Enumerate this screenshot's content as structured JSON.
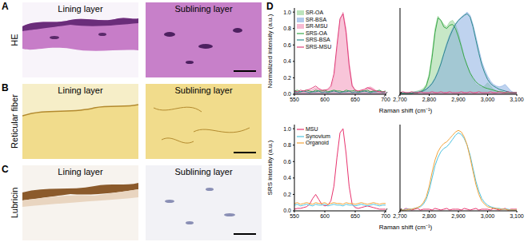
{
  "image_panels": [
    {
      "label": "A",
      "title": "HE",
      "columns": [
        "Lining layer",
        "Sublining layer"
      ]
    },
    {
      "label": "B",
      "title": "Reticular fiber",
      "columns": [
        "Lining layer",
        "Sublining layer"
      ]
    },
    {
      "label": "C",
      "title": "Lubricin",
      "columns": [
        "Lining layer",
        "Sublining layer"
      ]
    }
  ],
  "chart_panel_label": "D",
  "chart_data": [
    {
      "type": "line",
      "xlabel": "Raman shift (cm⁻¹)",
      "ylabel": "Normalized intensity (a.u.)",
      "legend": "upper left",
      "segments": [
        {
          "xlim": [
            550,
            700
          ],
          "xticks": [
            550,
            600,
            650,
            700
          ]
        },
        {
          "xlim": [
            2700,
            3100
          ],
          "xticks": [
            {
              "value": 2700,
              "label": "2,700"
            },
            {
              "value": 2800,
              "label": "2,800"
            },
            {
              "value": 2900,
              "label": "2,900"
            },
            {
              "value": 3000,
              "label": "3,000"
            },
            {
              "value": 3100,
              "label": "3,100"
            }
          ]
        }
      ],
      "ylim": [
        0,
        1.05
      ],
      "yticks": [
        {
          "value": 0,
          "label": "0.0"
        },
        {
          "value": 0.2,
          "label": "0.2"
        },
        {
          "value": 0.4,
          "label": "0.4"
        },
        {
          "value": 0.6,
          "label": "0.6"
        },
        {
          "value": 0.8,
          "label": "0.8"
        },
        {
          "value": 1,
          "label": "1.0"
        }
      ],
      "x": [
        550,
        555,
        560,
        565,
        570,
        575,
        580,
        585,
        590,
        595,
        600,
        605,
        610,
        615,
        620,
        625,
        630,
        635,
        640,
        645,
        650,
        655,
        660,
        665,
        670,
        675,
        680,
        685,
        690,
        695,
        700,
        2700,
        2710,
        2720,
        2730,
        2740,
        2750,
        2760,
        2770,
        2780,
        2790,
        2800,
        2810,
        2820,
        2830,
        2840,
        2850,
        2860,
        2870,
        2880,
        2890,
        2900,
        2910,
        2920,
        2930,
        2940,
        2950,
        2960,
        2970,
        2980,
        2990,
        3000,
        3010,
        3020,
        3030,
        3040,
        3050,
        3060,
        3070,
        3080,
        3090,
        3100
      ],
      "series": [
        {
          "name": "SR-OA",
          "type": "area",
          "color": "#8fd18f",
          "values": [
            0.03,
            0.03,
            0.02,
            0.03,
            0.03,
            0.02,
            0.03,
            0.03,
            0.02,
            0.03,
            0.03,
            0.02,
            0.03,
            0.03,
            0.03,
            0.02,
            0.03,
            0.03,
            0.02,
            0.03,
            0.03,
            0.02,
            0.03,
            0.03,
            0.02,
            0.03,
            0.03,
            0.02,
            0.03,
            0.03,
            0.02,
            0.02,
            0.02,
            0.02,
            0.02,
            0.03,
            0.03,
            0.04,
            0.05,
            0.07,
            0.12,
            0.25,
            0.5,
            0.8,
            0.95,
            0.9,
            0.85,
            0.82,
            0.88,
            0.9,
            0.85,
            0.75,
            0.6,
            0.45,
            0.35,
            0.25,
            0.18,
            0.12,
            0.1,
            0.08,
            0.1,
            0.14,
            0.1,
            0.06,
            0.04,
            0.03,
            0.02,
            0.02,
            0.02,
            0.02,
            0.02,
            0.02
          ]
        },
        {
          "name": "SR-BSA",
          "type": "area",
          "color": "#7fa8e0",
          "values": [
            0.02,
            0.02,
            0.03,
            0.02,
            0.02,
            0.02,
            0.03,
            0.02,
            0.02,
            0.02,
            0.02,
            0.02,
            0.03,
            0.02,
            0.02,
            0.02,
            0.03,
            0.02,
            0.02,
            0.02,
            0.02,
            0.02,
            0.03,
            0.02,
            0.02,
            0.02,
            0.03,
            0.02,
            0.02,
            0.02,
            0.02,
            0.02,
            0.02,
            0.02,
            0.02,
            0.02,
            0.03,
            0.03,
            0.04,
            0.05,
            0.07,
            0.1,
            0.14,
            0.2,
            0.28,
            0.38,
            0.5,
            0.62,
            0.72,
            0.8,
            0.86,
            0.9,
            0.94,
            0.97,
            1.0,
            0.96,
            0.85,
            0.7,
            0.55,
            0.4,
            0.3,
            0.22,
            0.16,
            0.12,
            0.1,
            0.09,
            0.1,
            0.12,
            0.08,
            0.04,
            0.02,
            0.02
          ]
        },
        {
          "name": "SR-MSU",
          "type": "area",
          "color": "#f28cb4",
          "values": [
            0.02,
            0.02,
            0.02,
            0.03,
            0.03,
            0.04,
            0.06,
            0.08,
            0.06,
            0.04,
            0.04,
            0.05,
            0.08,
            0.2,
            0.55,
            0.9,
            1.0,
            0.8,
            0.4,
            0.12,
            0.05,
            0.04,
            0.04,
            0.05,
            0.08,
            0.09,
            0.07,
            0.04,
            0.03,
            0.02,
            0.02,
            0.01,
            0.01,
            0.02,
            0.01,
            0.01,
            0.01,
            0.02,
            0.01,
            0.01,
            0.01,
            0.01,
            0.01,
            0.02,
            0.01,
            0.01,
            0.01,
            0.02,
            0.01,
            0.01,
            0.01,
            0.01,
            0.01,
            0.02,
            0.01,
            0.01,
            0.01,
            0.02,
            0.01,
            0.01,
            0.01,
            0.01,
            0.01,
            0.02,
            0.01,
            0.01,
            0.01,
            0.02,
            0.01,
            0.01,
            0.01,
            0.01
          ]
        },
        {
          "name": "SRS-OA",
          "type": "line",
          "color": "#3aa84a",
          "values": [
            0.04,
            0.05,
            0.03,
            0.04,
            0.05,
            0.04,
            0.03,
            0.05,
            0.04,
            0.04,
            0.05,
            0.03,
            0.04,
            0.05,
            0.04,
            0.04,
            0.03,
            0.05,
            0.04,
            0.04,
            0.05,
            0.03,
            0.04,
            0.04,
            0.05,
            0.03,
            0.04,
            0.04,
            0.05,
            0.03,
            0.04,
            0.01,
            0.01,
            0.01,
            0.01,
            0.01,
            0.02,
            0.02,
            0.03,
            0.05,
            0.1,
            0.22,
            0.45,
            0.75,
            0.93,
            0.9,
            0.82,
            0.8,
            0.84,
            0.85,
            0.8,
            0.7,
            0.58,
            0.45,
            0.35,
            0.26,
            0.2,
            0.15,
            0.12,
            0.1,
            0.08,
            0.07,
            0.06,
            0.05,
            0.04,
            0.03,
            0.03,
            0.02,
            0.02,
            0.02,
            0.02,
            0.02
          ]
        },
        {
          "name": "SRS-BSA",
          "type": "line",
          "color": "#2e8b8b",
          "values": [
            0.03,
            0.02,
            0.03,
            0.04,
            0.03,
            0.02,
            0.03,
            0.03,
            0.04,
            0.02,
            0.03,
            0.02,
            0.03,
            0.04,
            0.03,
            0.02,
            0.03,
            0.03,
            0.04,
            0.02,
            0.03,
            0.02,
            0.03,
            0.04,
            0.03,
            0.02,
            0.03,
            0.03,
            0.04,
            0.02,
            0.03,
            0.01,
            0.01,
            0.01,
            0.01,
            0.01,
            0.02,
            0.02,
            0.03,
            0.04,
            0.06,
            0.09,
            0.13,
            0.19,
            0.27,
            0.37,
            0.49,
            0.6,
            0.7,
            0.78,
            0.85,
            0.9,
            0.93,
            0.96,
            0.98,
            0.94,
            0.82,
            0.66,
            0.5,
            0.36,
            0.26,
            0.18,
            0.13,
            0.1,
            0.08,
            0.06,
            0.05,
            0.04,
            0.03,
            0.02,
            0.02,
            0.02
          ]
        },
        {
          "name": "SRS-MSU",
          "type": "line",
          "color": "#e0407a",
          "values": [
            0.04,
            0.03,
            0.05,
            0.04,
            0.05,
            0.06,
            0.08,
            0.1,
            0.07,
            0.05,
            0.05,
            0.06,
            0.1,
            0.25,
            0.6,
            0.92,
            0.98,
            0.75,
            0.35,
            0.1,
            0.05,
            0.04,
            0.05,
            0.06,
            0.08,
            0.07,
            0.05,
            0.04,
            0.03,
            0.03,
            0.03,
            0.02,
            0.03,
            0.02,
            0.02,
            0.03,
            0.02,
            0.02,
            0.03,
            0.02,
            0.02,
            0.02,
            0.03,
            0.02,
            0.02,
            0.03,
            0.02,
            0.02,
            0.03,
            0.02,
            0.02,
            0.02,
            0.03,
            0.02,
            0.02,
            0.03,
            0.02,
            0.02,
            0.03,
            0.02,
            0.02,
            0.02,
            0.03,
            0.02,
            0.02,
            0.03,
            0.02,
            0.02,
            0.03,
            0.02,
            0.02,
            0.02
          ]
        }
      ]
    },
    {
      "type": "line",
      "xlabel": "Raman shift (cm⁻¹)",
      "ylabel": "SRS intensity (a.u.)",
      "legend": "upper left",
      "segments": [
        {
          "xlim": [
            550,
            700
          ],
          "xticks": [
            550,
            600,
            650,
            700
          ]
        },
        {
          "xlim": [
            2700,
            3100
          ],
          "xticks": [
            {
              "value": 2700,
              "label": "2,700"
            },
            {
              "value": 2800,
              "label": "2,800"
            },
            {
              "value": 2900,
              "label": "2,900"
            },
            {
              "value": 3000,
              "label": "3,000"
            },
            {
              "value": 3100,
              "label": "3,100"
            }
          ]
        }
      ],
      "ylim": [
        0,
        1.05
      ],
      "yticks": [
        {
          "value": 0,
          "label": "0.0"
        },
        {
          "value": 0.2,
          "label": "0.2"
        },
        {
          "value": 0.4,
          "label": "0.4"
        },
        {
          "value": 0.6,
          "label": "0.6"
        },
        {
          "value": 0.8,
          "label": "0.8"
        },
        {
          "value": 1,
          "label": "1.0"
        }
      ],
      "x": [
        550,
        555,
        560,
        565,
        570,
        575,
        580,
        585,
        590,
        595,
        600,
        605,
        610,
        615,
        620,
        625,
        630,
        635,
        640,
        645,
        650,
        655,
        660,
        665,
        670,
        675,
        680,
        685,
        690,
        695,
        700,
        2700,
        2710,
        2720,
        2730,
        2740,
        2750,
        2760,
        2770,
        2780,
        2790,
        2800,
        2810,
        2820,
        2830,
        2840,
        2850,
        2860,
        2870,
        2880,
        2890,
        2900,
        2910,
        2920,
        2930,
        2940,
        2950,
        2960,
        2970,
        2980,
        2990,
        3000,
        3010,
        3020,
        3030,
        3040,
        3050,
        3060,
        3070,
        3080,
        3090,
        3100
      ],
      "series": [
        {
          "name": "MSU",
          "type": "line",
          "color": "#e8336e",
          "values": [
            0.02,
            0.03,
            0.03,
            0.04,
            0.05,
            0.08,
            0.15,
            0.2,
            0.14,
            0.08,
            0.06,
            0.07,
            0.12,
            0.3,
            0.65,
            0.95,
            1.0,
            0.7,
            0.3,
            0.08,
            0.04,
            0.03,
            0.04,
            0.05,
            0.06,
            0.05,
            0.04,
            0.03,
            0.02,
            0.02,
            0.02,
            0.02,
            0.01,
            0.03,
            0.02,
            0.01,
            0.02,
            0.03,
            0.01,
            0.02,
            0.02,
            0.02,
            0.01,
            0.03,
            0.02,
            0.01,
            0.02,
            0.03,
            0.01,
            0.02,
            0.02,
            0.02,
            0.01,
            0.03,
            0.02,
            0.01,
            0.02,
            0.03,
            0.01,
            0.02,
            0.02,
            0.02,
            0.01,
            0.03,
            0.02,
            0.01,
            0.02,
            0.03,
            0.01,
            0.02,
            0.02,
            0.02
          ]
        },
        {
          "name": "Synovium",
          "type": "line",
          "color": "#4fc3e0",
          "values": [
            0.07,
            0.08,
            0.06,
            0.07,
            0.08,
            0.07,
            0.06,
            0.08,
            0.07,
            0.07,
            0.08,
            0.06,
            0.07,
            0.08,
            0.07,
            0.07,
            0.06,
            0.08,
            0.07,
            0.07,
            0.06,
            0.07,
            0.08,
            0.07,
            0.06,
            0.07,
            0.08,
            0.07,
            0.06,
            0.07,
            0.07,
            0.01,
            0.01,
            0.02,
            0.02,
            0.02,
            0.03,
            0.04,
            0.05,
            0.08,
            0.14,
            0.25,
            0.4,
            0.55,
            0.65,
            0.72,
            0.76,
            0.78,
            0.82,
            0.87,
            0.92,
            0.95,
            0.93,
            0.88,
            0.8,
            0.68,
            0.52,
            0.36,
            0.24,
            0.15,
            0.1,
            0.07,
            0.05,
            0.04,
            0.03,
            0.03,
            0.02,
            0.02,
            0.02,
            0.01,
            0.01,
            0.01
          ]
        },
        {
          "name": "Organoid",
          "type": "line",
          "color": "#f2a33a",
          "values": [
            0.09,
            0.1,
            0.08,
            0.09,
            0.1,
            0.09,
            0.08,
            0.1,
            0.09,
            0.09,
            0.1,
            0.08,
            0.09,
            0.1,
            0.09,
            0.09,
            0.08,
            0.1,
            0.09,
            0.09,
            0.08,
            0.09,
            0.1,
            0.09,
            0.08,
            0.09,
            0.1,
            0.09,
            0.08,
            0.09,
            0.09,
            0.01,
            0.01,
            0.01,
            0.02,
            0.02,
            0.03,
            0.04,
            0.06,
            0.1,
            0.17,
            0.3,
            0.47,
            0.62,
            0.72,
            0.78,
            0.82,
            0.84,
            0.88,
            0.92,
            0.96,
            0.98,
            0.96,
            0.9,
            0.8,
            0.65,
            0.48,
            0.32,
            0.2,
            0.12,
            0.08,
            0.05,
            0.04,
            0.03,
            0.03,
            0.02,
            0.02,
            0.02,
            0.01,
            0.01,
            0.01,
            0.01
          ]
        }
      ]
    }
  ]
}
